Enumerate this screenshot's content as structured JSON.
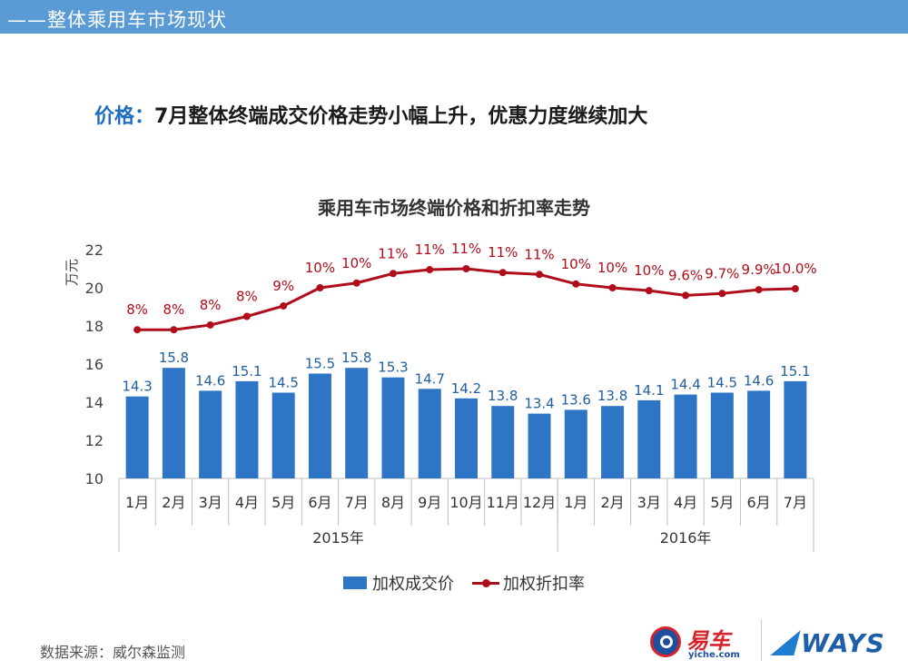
{
  "header": {
    "title": "——整体乘用车市场现状"
  },
  "headline": {
    "label": "价格：",
    "text": "7月整体终端成交价格走势小幅上升，优惠力度继续加大"
  },
  "chart_data": {
    "type": "bar+line",
    "title": "乘用车市场终端价格和折扣率走势",
    "ylabel": "万元",
    "ylim": [
      10,
      22
    ],
    "yticks": [
      "10",
      "12",
      "14",
      "16",
      "18",
      "20",
      "22"
    ],
    "categories": [
      "1月",
      "2月",
      "3月",
      "4月",
      "5月",
      "6月",
      "7月",
      "8月",
      "9月",
      "10月",
      "11月",
      "12月",
      "1月",
      "2月",
      "3月",
      "4月",
      "5月",
      "6月",
      "7月"
    ],
    "groups": [
      {
        "label": "2015年",
        "count": 12
      },
      {
        "label": "2016年",
        "count": 7
      }
    ],
    "series": [
      {
        "name": "加权成交价",
        "type": "bar",
        "color": "#2e75c5",
        "values": [
          14.3,
          15.8,
          14.6,
          15.1,
          14.5,
          15.5,
          15.8,
          15.3,
          14.7,
          14.2,
          13.8,
          13.4,
          13.6,
          13.8,
          14.1,
          14.4,
          14.5,
          14.6,
          15.1
        ],
        "labels": [
          "14.3",
          "15.8",
          "14.6",
          "15.1",
          "14.5",
          "15.5",
          "15.8",
          "15.3",
          "14.7",
          "14.2",
          "13.8",
          "13.4",
          "13.6",
          "13.8",
          "14.1",
          "14.4",
          "14.5",
          "14.6",
          "15.1"
        ]
      },
      {
        "name": "加权折扣率",
        "type": "line",
        "color": "#b00d1a",
        "plot_y": [
          17.8,
          17.8,
          18.05,
          18.5,
          19.05,
          20.0,
          20.25,
          20.75,
          20.95,
          21.0,
          20.8,
          20.7,
          20.2,
          20.0,
          19.85,
          19.6,
          19.7,
          19.9,
          19.95
        ],
        "labels": [
          "8%",
          "8%",
          "8%",
          "8%",
          "9%",
          "10%",
          "10%",
          "11%",
          "11%",
          "11%",
          "11%",
          "11%",
          "10%",
          "10%",
          "10%",
          "9.6%",
          "9.7%",
          "9.9%",
          "10.0%"
        ]
      }
    ]
  },
  "legend": {
    "bar_label": "加权成交价",
    "line_label": "加权折扣率"
  },
  "footer": {
    "source": "数据来源：威尔森监测",
    "logo1_brand": "易车",
    "logo1_sub": "yiche.com",
    "logo2": "WAYS"
  }
}
